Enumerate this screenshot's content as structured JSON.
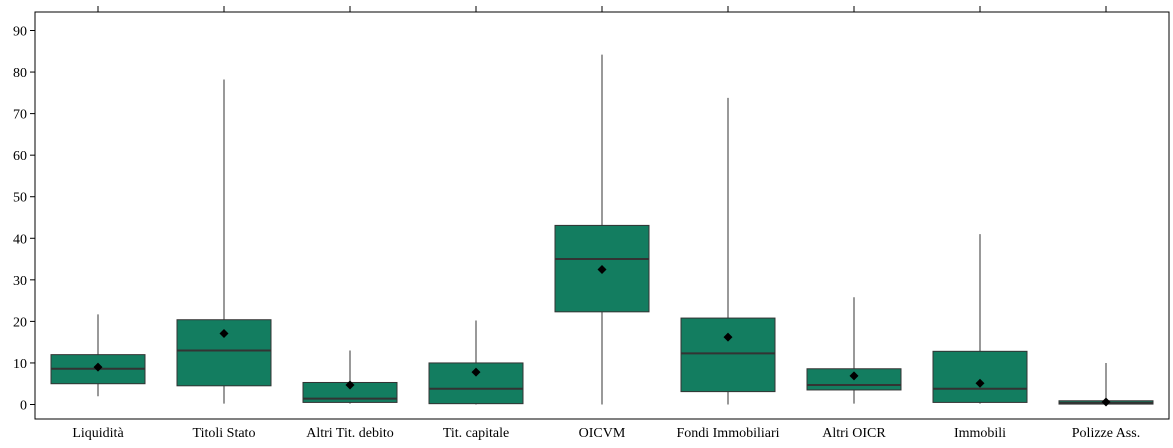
{
  "chart_data": {
    "type": "boxplot",
    "title": "",
    "xlabel": "",
    "ylabel": "",
    "ylim": [
      -4,
      94
    ],
    "yticks": [
      0,
      10,
      20,
      30,
      40,
      50,
      60,
      70,
      80,
      90
    ],
    "ytick_labels": [
      "0",
      "10",
      "20",
      "30",
      "40",
      "50",
      "60",
      "70",
      "80",
      "90"
    ],
    "grid": false,
    "legend": "none",
    "box_color": "#137d60",
    "box_edge_color": "#333333",
    "mean_marker": "diamond",
    "categories": [
      "Liquidità",
      "Titoli Stato",
      "Altri Tit. debito",
      "Tit. capitale",
      "OICVM",
      "Fondi Immobiliari",
      "Altri OICR",
      "Immobili",
      "Polizze Ass."
    ],
    "boxes": [
      {
        "whisker_low": 2,
        "q1": 5,
        "median": 8.6,
        "q3": 12,
        "whisker_high": 21.7,
        "mean": 9
      },
      {
        "whisker_low": 0.2,
        "q1": 4.5,
        "median": 13,
        "q3": 20.4,
        "whisker_high": 78.2,
        "mean": 17.1
      },
      {
        "whisker_low": 0.2,
        "q1": 0.5,
        "median": 1.4,
        "q3": 5.3,
        "whisker_high": 13,
        "mean": 4.7
      },
      {
        "whisker_low": 0,
        "q1": 0.2,
        "median": 3.8,
        "q3": 10,
        "whisker_high": 20.2,
        "mean": 7.8
      },
      {
        "whisker_low": 0,
        "q1": 22.3,
        "median": 35,
        "q3": 43.1,
        "whisker_high": 84.2,
        "mean": 32.5
      },
      {
        "whisker_low": 0,
        "q1": 3.1,
        "median": 12.3,
        "q3": 20.8,
        "whisker_high": 73.8,
        "mean": 16.2
      },
      {
        "whisker_low": 0.2,
        "q1": 3.5,
        "median": 4.7,
        "q3": 8.6,
        "whisker_high": 25.8,
        "mean": 6.9
      },
      {
        "whisker_low": 0.2,
        "q1": 0.5,
        "median": 3.8,
        "q3": 12.8,
        "whisker_high": 41,
        "mean": 5.1
      },
      {
        "whisker_low": 0,
        "q1": 0.1,
        "median": 0.4,
        "q3": 0.9,
        "whisker_high": 10,
        "mean": 0.6
      }
    ]
  }
}
